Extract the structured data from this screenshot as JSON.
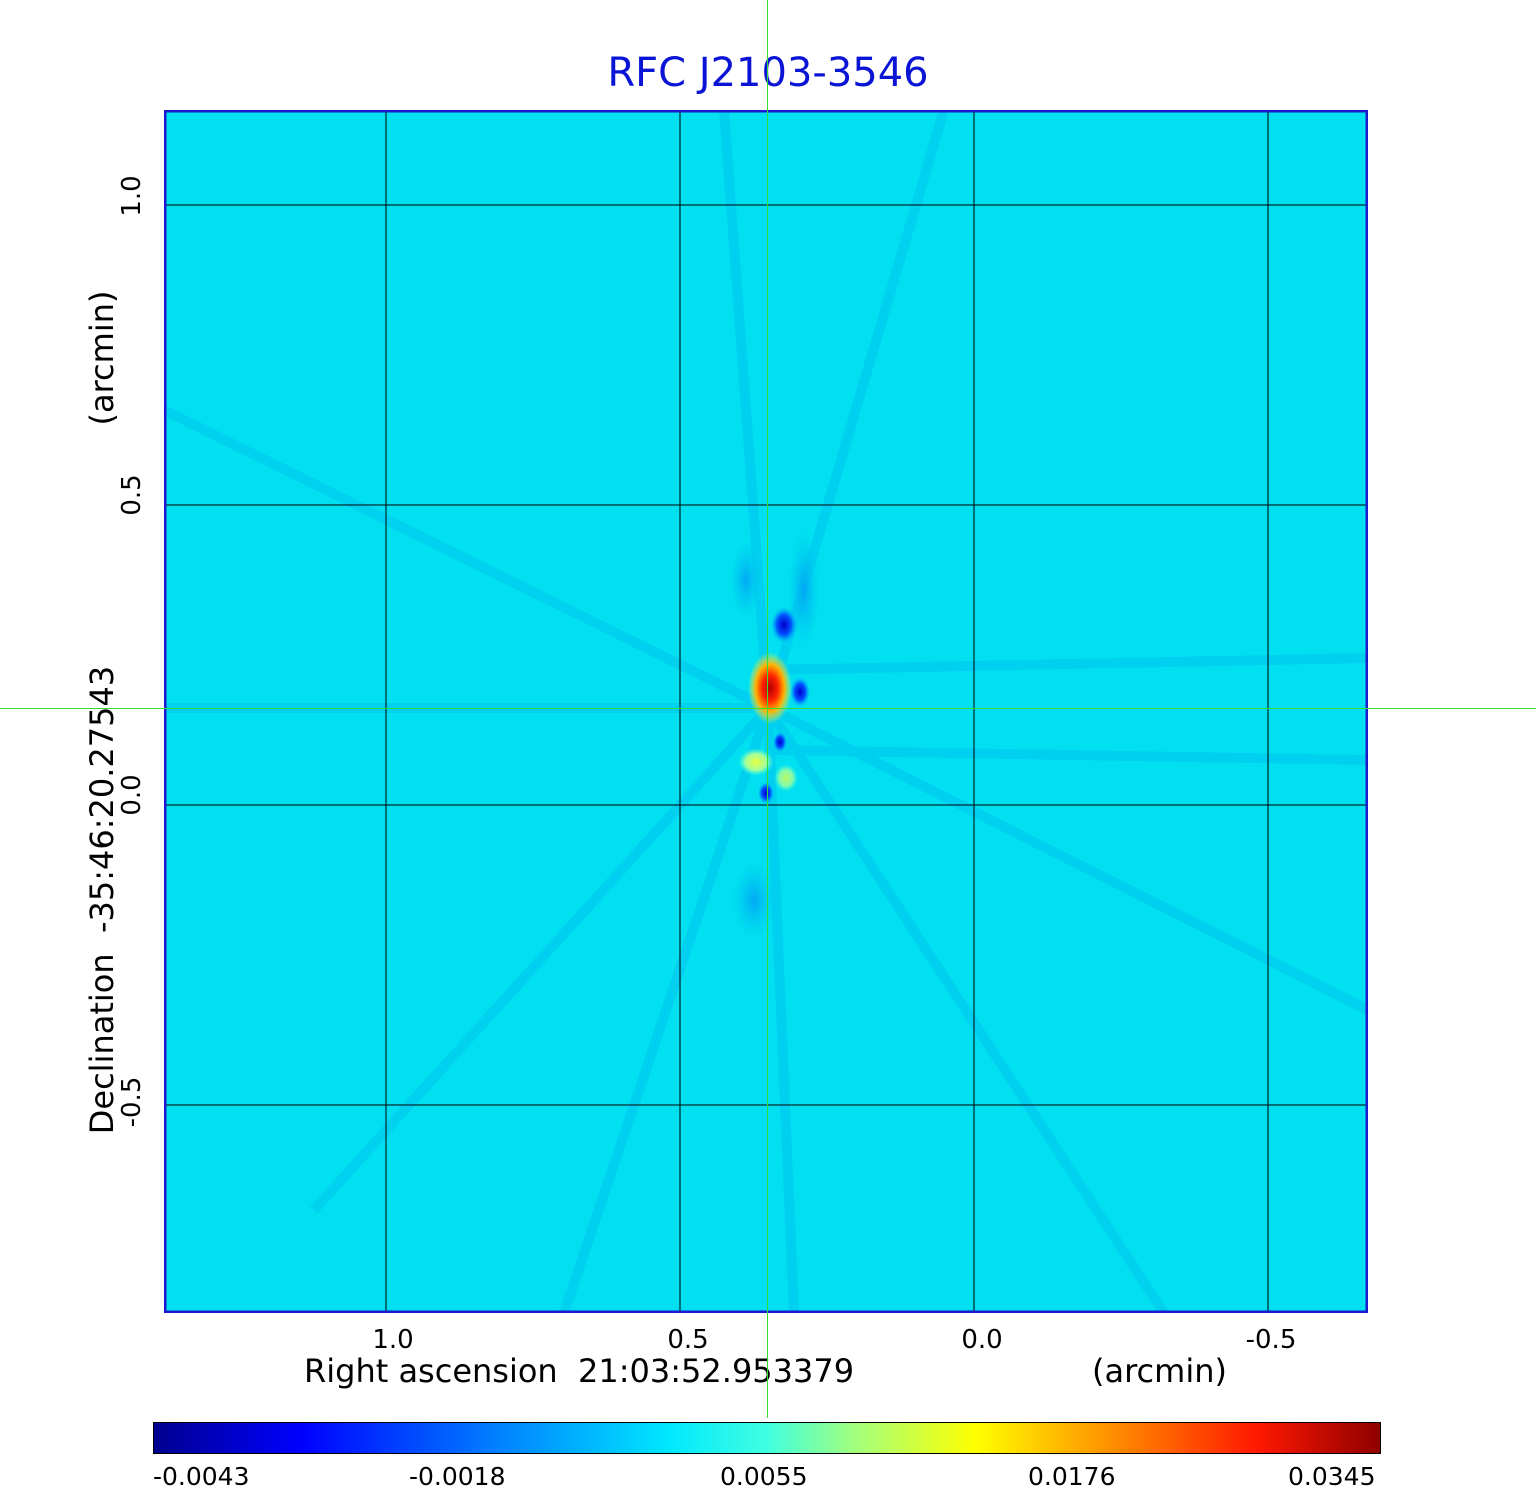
{
  "title": "RFC J2103-3546",
  "x_axis": {
    "label": "Right ascension  21:03:52.953379",
    "unit": "(arcmin)",
    "ticks": [
      "1.0",
      "0.5",
      "0.0",
      "-0.5"
    ]
  },
  "y_axis": {
    "label": "Declination  -35:46:20.27543",
    "unit": "(arcmin)",
    "ticks": [
      "1.0",
      "0.5",
      "0.0",
      "-0.5"
    ]
  },
  "colorbar": {
    "ticks": [
      "-0.0043",
      "-0.0018",
      "0.0055",
      "0.0176",
      "0.0345"
    ],
    "colormap": "jet"
  },
  "colors": {
    "title": "#0a14d4",
    "frame": "#1a1acc",
    "background_map": "#00e0f0",
    "crosshair": "#33dd33"
  }
}
